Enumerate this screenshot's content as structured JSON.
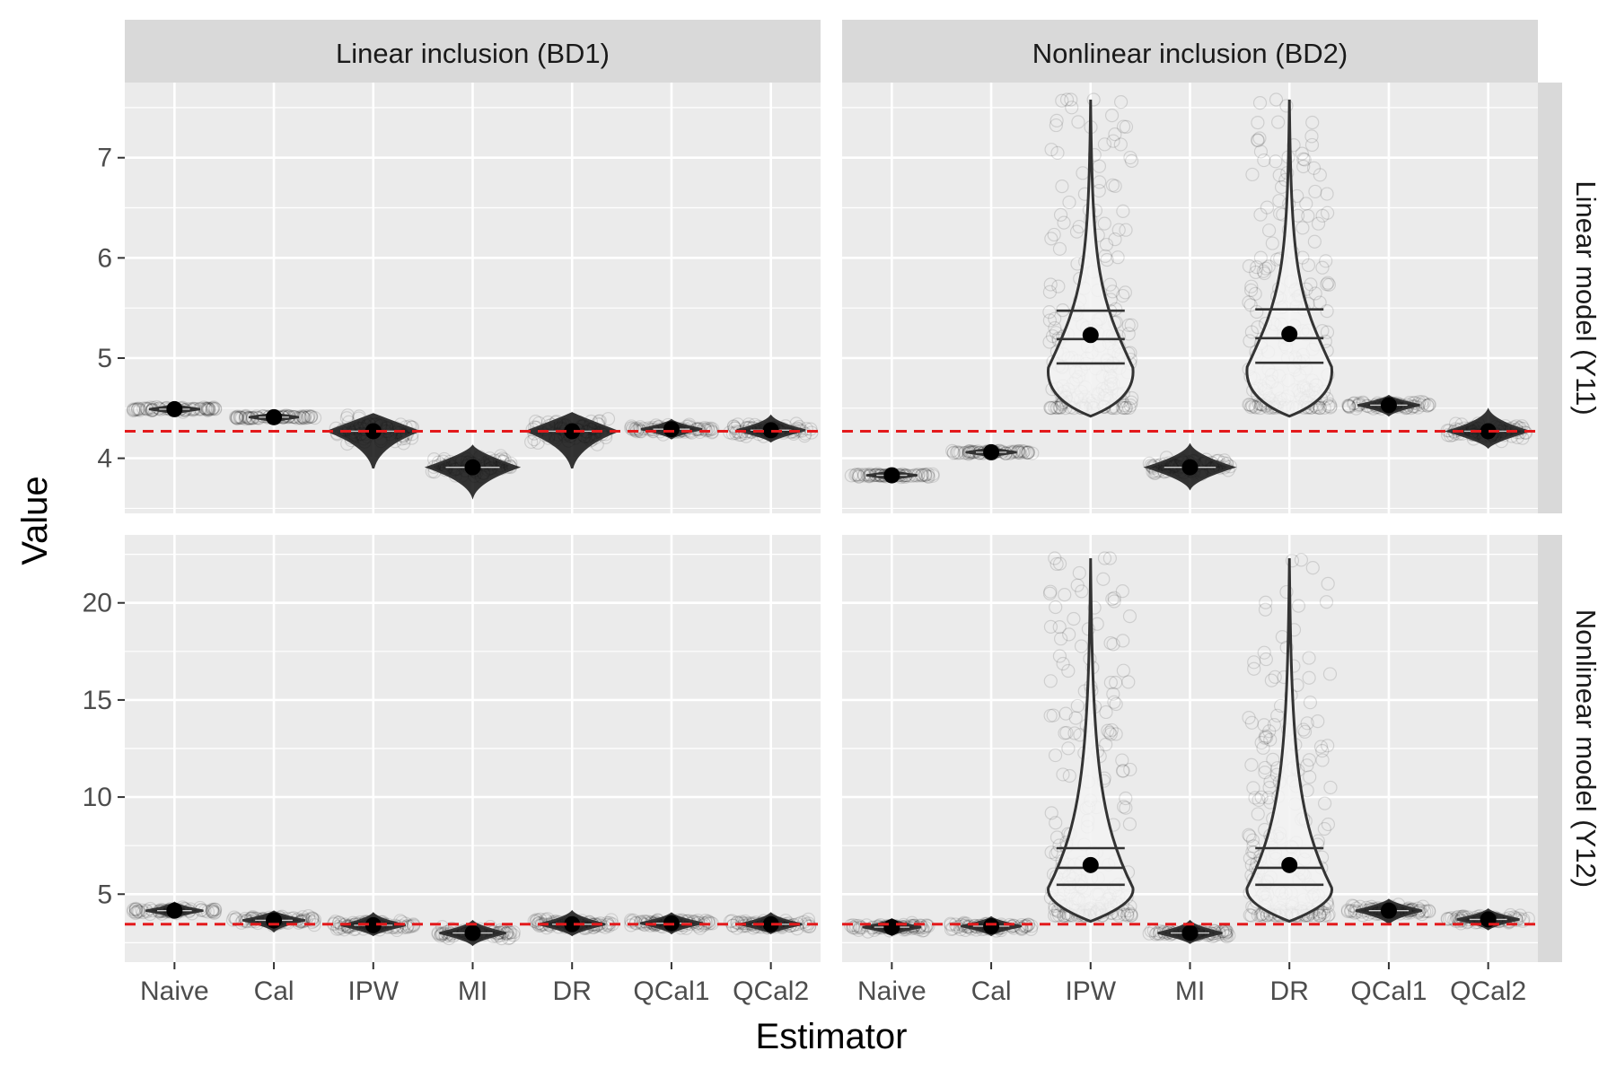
{
  "chart_data": {
    "type": "violin",
    "xlabel": "Estimator",
    "ylabel": "Value",
    "categories": [
      "Naive",
      "Cal",
      "IPW",
      "MI",
      "DR",
      "QCal1",
      "QCal2"
    ],
    "columns": [
      "Linear inclusion (BD1)",
      "Nonlinear inclusion (BD2)"
    ],
    "rows": [
      "Linear model (Y11)",
      "Nonlinear model (Y12)"
    ],
    "colors": {
      "panel_bg": "#ebebeb",
      "strip_bg": "#d9d9d9",
      "grid": "#ffffff",
      "reference_line": "#e31a1c",
      "violin_outline": "#333333",
      "violin_fill": "#f2f2f2",
      "points": "#000000"
    },
    "panels": [
      {
        "col": 0,
        "row": 0,
        "reference": 4.27,
        "ylim": [
          3.45,
          7.75
        ],
        "yticks": [
          4,
          5,
          6,
          7
        ],
        "means": [
          4.49,
          4.41,
          4.27,
          3.91,
          4.27,
          4.29,
          4.28
        ],
        "ranges": [
          [
            4.45,
            4.53
          ],
          [
            4.37,
            4.44
          ],
          [
            3.9,
            4.44
          ],
          [
            3.62,
            4.12
          ],
          [
            3.9,
            4.45
          ],
          [
            4.2,
            4.38
          ],
          [
            4.17,
            4.42
          ]
        ]
      },
      {
        "col": 1,
        "row": 0,
        "reference": 4.27,
        "ylim": [
          3.45,
          7.75
        ],
        "yticks": [
          4,
          5,
          6,
          7
        ],
        "means": [
          3.83,
          4.06,
          5.23,
          3.91,
          5.24,
          4.53,
          4.27
        ],
        "ranges": [
          [
            3.79,
            3.87
          ],
          [
            4.02,
            4.1
          ],
          [
            4.42,
            7.58
          ],
          [
            3.7,
            4.13
          ],
          [
            4.42,
            7.58
          ],
          [
            4.43,
            4.62
          ],
          [
            4.11,
            4.48
          ]
        ]
      },
      {
        "col": 0,
        "row": 1,
        "reference": 3.45,
        "ylim": [
          1.5,
          23.5
        ],
        "yticks": [
          5,
          10,
          15,
          20
        ],
        "means": [
          4.15,
          3.65,
          3.4,
          3.0,
          3.45,
          3.5,
          3.45
        ],
        "ranges": [
          [
            3.8,
            4.55
          ],
          [
            3.1,
            4.1
          ],
          [
            2.9,
            4.0
          ],
          [
            2.4,
            3.6
          ],
          [
            2.9,
            4.1
          ],
          [
            3.0,
            4.0
          ],
          [
            3.0,
            4.0
          ]
        ]
      },
      {
        "col": 1,
        "row": 1,
        "reference": 3.45,
        "ylim": [
          1.5,
          23.5
        ],
        "yticks": [
          5,
          10,
          15,
          20
        ],
        "means": [
          3.3,
          3.35,
          6.5,
          3.0,
          6.5,
          4.15,
          3.7
        ],
        "ranges": [
          [
            2.9,
            3.7
          ],
          [
            2.9,
            3.8
          ],
          [
            3.6,
            22.3
          ],
          [
            2.5,
            3.6
          ],
          [
            3.6,
            22.3
          ],
          [
            3.5,
            4.7
          ],
          [
            3.2,
            4.2
          ]
        ]
      }
    ]
  }
}
